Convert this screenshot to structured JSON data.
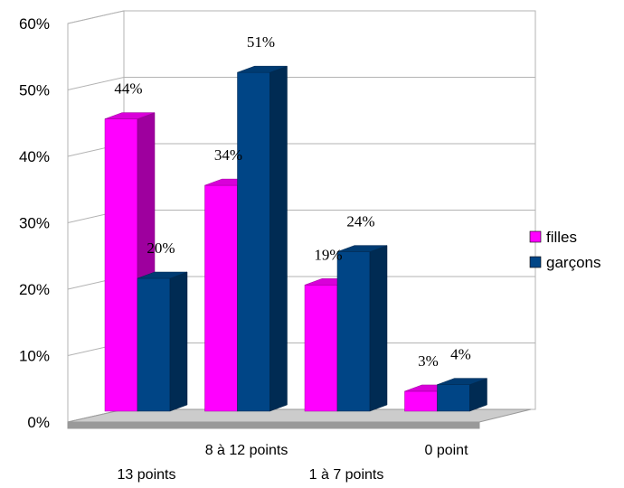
{
  "chart_data": {
    "type": "bar",
    "title": "",
    "xlabel": "",
    "ylabel": "",
    "categories": [
      "13 points",
      "8 à 12 points",
      "1 à 7 points",
      "0 point"
    ],
    "series": [
      {
        "name": "filles",
        "values": [
          44,
          34,
          19,
          3
        ],
        "color": "#ff00ff",
        "labels": [
          "44%",
          "34%",
          "19%",
          "3%"
        ]
      },
      {
        "name": "garçons",
        "values": [
          20,
          51,
          24,
          4
        ],
        "color": "#004586",
        "labels": [
          "20%",
          "51%",
          "24%",
          "4%"
        ]
      }
    ],
    "ylim": [
      0,
      60
    ],
    "yticks": [
      "0%",
      "10%",
      "20%",
      "30%",
      "40%",
      "50%",
      "60%"
    ],
    "grid": true,
    "legend_position": "right",
    "style": "3d-clustered-column"
  }
}
